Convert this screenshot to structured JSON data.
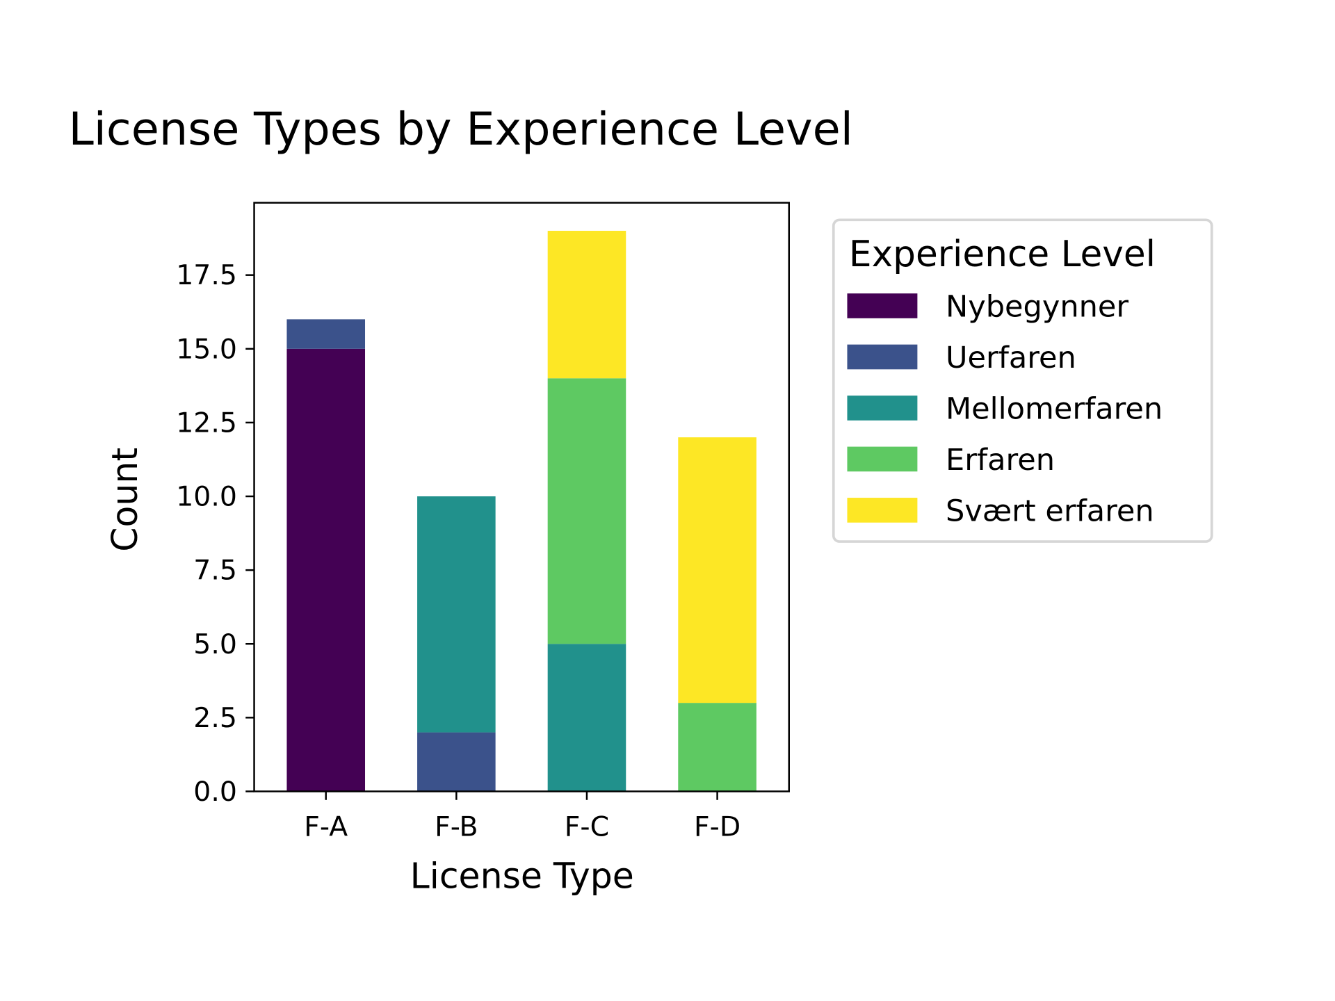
{
  "chart_data": {
    "type": "bar",
    "stacked": true,
    "title": "License Types by Experience Level",
    "xlabel": "License Type",
    "ylabel": "Count",
    "categories": [
      "F-A",
      "F-B",
      "F-C",
      "F-D"
    ],
    "ylim": [
      0,
      19.95
    ],
    "yticks": [
      0,
      2.5,
      5,
      7.5,
      10,
      12.5,
      15,
      17.5
    ],
    "ytick_labels": [
      "0.0",
      "2.5",
      "5.0",
      "7.5",
      "10.0",
      "12.5",
      "15.0",
      "17.5"
    ],
    "grid": false,
    "legend": {
      "title": "Experience Level",
      "placement": "outside-right-top"
    },
    "series": [
      {
        "name": "Nybegynner",
        "color": "#440154",
        "values": [
          15,
          0,
          0,
          0
        ]
      },
      {
        "name": "Uerfaren",
        "color": "#3b528b",
        "values": [
          1,
          2,
          0,
          0
        ]
      },
      {
        "name": "Mellomerfaren",
        "color": "#21918c",
        "values": [
          0,
          8,
          5,
          0
        ]
      },
      {
        "name": "Erfaren",
        "color": "#5ec962",
        "values": [
          0,
          0,
          9,
          3
        ]
      },
      {
        "name": "Svært erfaren",
        "color": "#fde725",
        "values": [
          0,
          0,
          5,
          9
        ]
      }
    ]
  }
}
